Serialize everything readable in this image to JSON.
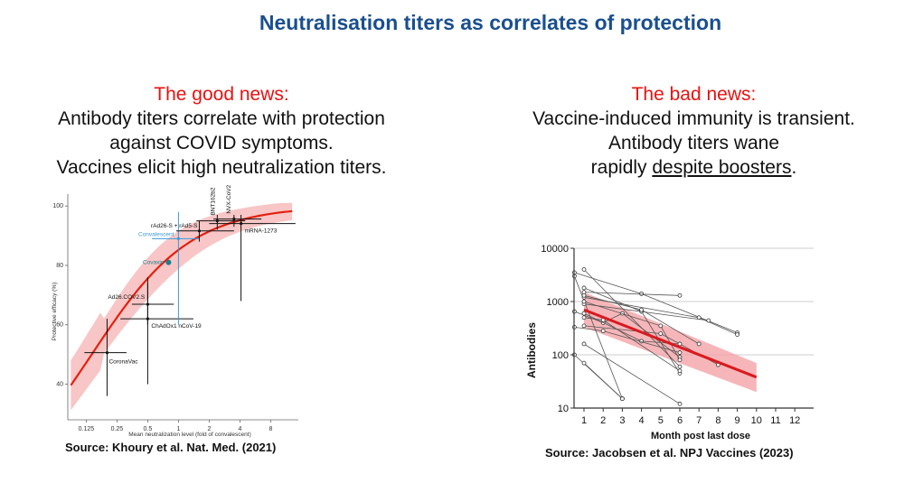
{
  "slide_title": "Neutralisation titers as correlates of protection",
  "left": {
    "heading": "The good news:",
    "lines": [
      "Antibody titers correlate with protection",
      "against COVID symptoms.",
      "Vaccines elicit high neutralization titers."
    ],
    "source": "Source: Khoury et al. Nat. Med. (2021)"
  },
  "right": {
    "heading": "The bad news:",
    "line1": "Vaccine-induced immunity is transient.",
    "line2": "Antibody titers wane",
    "line3_prefix": "rapidly ",
    "line3_underlined": "despite boosters",
    "line3_suffix": ".",
    "source": "Source:  Jacobsen et al. NPJ Vaccines (2023)"
  },
  "chart_data": [
    {
      "type": "scatter",
      "xlabel": "Mean neutralization level (fold of convalescent)",
      "ylabel": "Protective efficacy (%)",
      "x_scale": "log2",
      "xticks": [
        "0.125",
        "0.25",
        "0.5",
        "1",
        "2",
        "4",
        "8"
      ],
      "yticks": [
        "40",
        "60",
        "80",
        "100"
      ],
      "points": [
        {
          "label": "CoronaVac",
          "x": 0.2,
          "y": 50.6,
          "color": "#111111"
        },
        {
          "label": "Ad26.COV2.S",
          "x": 0.5,
          "y": 66.9,
          "color": "#111111"
        },
        {
          "label": "ChAdOx1 nCoV-19",
          "x": 0.5,
          "y": 62.0,
          "color": "#111111"
        },
        {
          "label": "Covaxin",
          "x": 0.8,
          "y": 81.0,
          "color": "#1b7f8c"
        },
        {
          "label": "Convalescent",
          "x": 1.0,
          "y": 89.0,
          "color": "#3a9ad9"
        },
        {
          "label": "rAd26-S + rAd5-S",
          "x": 1.6,
          "y": 91.6,
          "color": "#111111"
        },
        {
          "label": "BNT162b2",
          "x": 2.4,
          "y": 95.0,
          "color": "#111111"
        },
        {
          "label": "NVX-CoV2373",
          "x": 3.5,
          "y": 95.6,
          "color": "#111111"
        },
        {
          "label": "mRNA-1273",
          "x": 4.1,
          "y": 94.1,
          "color": "#111111"
        }
      ]
    },
    {
      "type": "line",
      "xlabel": "Month post last dose",
      "ylabel": "Antibodies",
      "y_scale": "log10",
      "ylim": [
        10,
        10000
      ],
      "xticks": [
        "1",
        "2",
        "3",
        "4",
        "5",
        "6",
        "7",
        "8",
        "9",
        "10",
        "11",
        "12"
      ],
      "yticks": [
        "10",
        "100",
        "1000",
        "10000"
      ],
      "trend": {
        "x": [
          1,
          10
        ],
        "y": [
          700,
          38
        ]
      }
    }
  ]
}
